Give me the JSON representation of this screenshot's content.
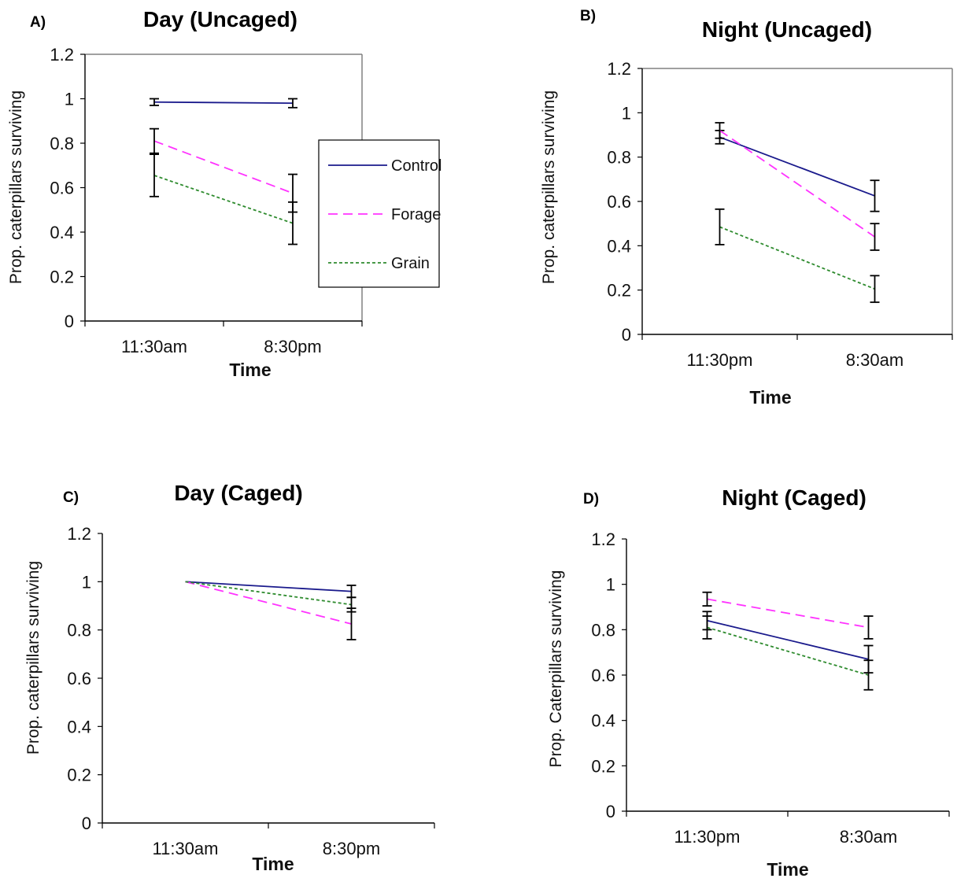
{
  "colors": {
    "control": "#1a1a8c",
    "forage": "#ff33ff",
    "grain": "#2e8b2e",
    "axis": "#000000",
    "frame": "#808080"
  },
  "legend": {
    "entries": [
      {
        "series": "control",
        "label": "Control"
      },
      {
        "series": "forage",
        "label": "Forage"
      },
      {
        "series": "grain",
        "label": "Grain"
      }
    ]
  },
  "chart_data": [
    {
      "id": "A",
      "letter": "A)",
      "type": "line",
      "title": "Day (Uncaged)",
      "xlabel": "Time",
      "ylabel": "Prop. caterpillars surviving",
      "categories": [
        "11:30am",
        "8:30pm"
      ],
      "ylim": [
        0,
        1.2
      ],
      "yticks": [
        "0",
        "0.2",
        "0.4",
        "0.6",
        "0.8",
        "1",
        "1.2"
      ],
      "grid": false,
      "legend": "right",
      "series": [
        {
          "key": "control",
          "values": [
            0.985,
            0.98
          ],
          "errors": [
            0.015,
            0.02
          ]
        },
        {
          "key": "forage",
          "values": [
            0.81,
            0.575
          ],
          "errors": [
            0.055,
            0.085
          ]
        },
        {
          "key": "grain",
          "values": [
            0.655,
            0.44
          ],
          "errors": [
            0.095,
            0.095
          ]
        }
      ]
    },
    {
      "id": "B",
      "letter": "B)",
      "type": "line",
      "title": "Night (Uncaged)",
      "xlabel": "Time",
      "ylabel": "Prop. caterpillars surviving",
      "categories": [
        "11:30pm",
        "8:30am"
      ],
      "ylim": [
        0,
        1.2
      ],
      "yticks": [
        "0",
        "0.2",
        "0.4",
        "0.6",
        "0.8",
        "1",
        "1.2"
      ],
      "grid": false,
      "legend": "none",
      "series": [
        {
          "key": "control",
          "values": [
            0.89,
            0.625
          ],
          "errors": [
            0.03,
            0.07
          ]
        },
        {
          "key": "forage",
          "values": [
            0.92,
            0.44
          ],
          "errors": [
            0.035,
            0.06
          ]
        },
        {
          "key": "grain",
          "values": [
            0.485,
            0.205
          ],
          "errors": [
            0.08,
            0.06
          ]
        }
      ]
    },
    {
      "id": "C",
      "letter": "C)",
      "type": "line",
      "title": "Day (Caged)",
      "xlabel": "Time",
      "ylabel": "Prop. caterpillars surviving",
      "categories": [
        "11:30am",
        "8:30pm"
      ],
      "ylim": [
        0,
        1.2
      ],
      "yticks": [
        "0",
        "0.2",
        "0.4",
        "0.6",
        "0.8",
        "1",
        "1.2"
      ],
      "grid": false,
      "legend": "none",
      "series": [
        {
          "key": "control",
          "values": [
            1.0,
            0.96
          ],
          "errors": [
            0.0,
            0.025
          ]
        },
        {
          "key": "forage",
          "values": [
            1.0,
            0.825
          ],
          "errors": [
            0.0,
            0.065
          ]
        },
        {
          "key": "grain",
          "values": [
            1.0,
            0.905
          ],
          "errors": [
            0.0,
            0.03
          ]
        }
      ]
    },
    {
      "id": "D",
      "letter": "D)",
      "type": "line",
      "title": "Night (Caged)",
      "xlabel": "Time",
      "ylabel": "Prop. Caterpillars surviving",
      "categories": [
        "11:30pm",
        "8:30am"
      ],
      "ylim": [
        0,
        1.2
      ],
      "yticks": [
        "0",
        "0.2",
        "0.4",
        "0.6",
        "0.8",
        "1",
        "1.2"
      ],
      "grid": false,
      "legend": "none",
      "series": [
        {
          "key": "control",
          "values": [
            0.84,
            0.67
          ],
          "errors": [
            0.04,
            0.06
          ]
        },
        {
          "key": "forage",
          "values": [
            0.935,
            0.81
          ],
          "errors": [
            0.03,
            0.05
          ]
        },
        {
          "key": "grain",
          "values": [
            0.81,
            0.6
          ],
          "errors": [
            0.05,
            0.065
          ]
        }
      ]
    }
  ]
}
